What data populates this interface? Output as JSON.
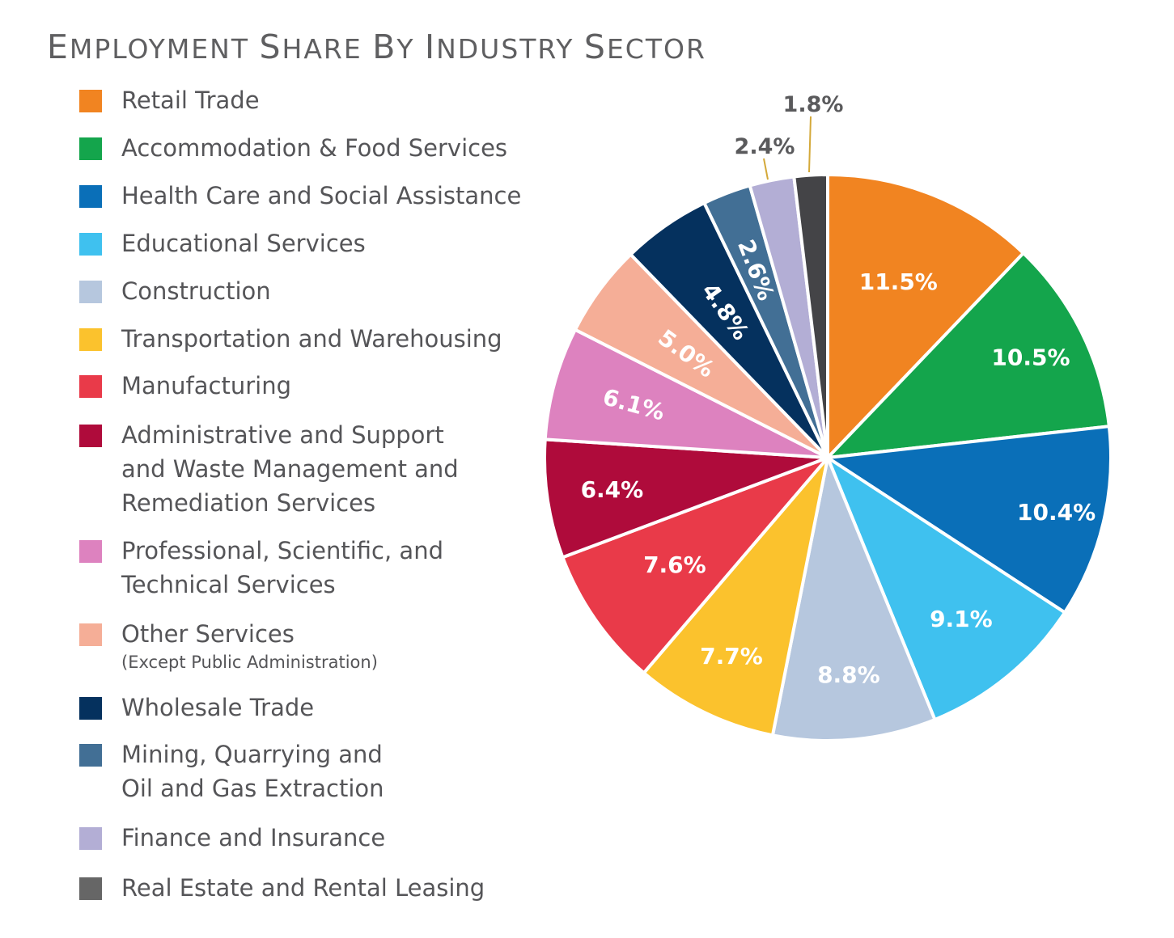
{
  "chart_data": {
    "type": "pie",
    "title": "Employment Share by Industry Sector",
    "title_display": "EMPLOYMENT SHARE BY INDUSTRY SECTOR",
    "slices": [
      {
        "label": "Retail Trade",
        "value": 11.5,
        "value_label": "11.5%",
        "color": "#f18421"
      },
      {
        "label": "Accommodation & Food Services",
        "value": 10.5,
        "value_label": "10.5%",
        "color": "#14a54c"
      },
      {
        "label": "Health Care and Social Assistance",
        "value": 10.4,
        "value_label": "10.4%",
        "color": "#0a6fb8"
      },
      {
        "label": "Educational Services",
        "value": 9.1,
        "value_label": "9.1%",
        "color": "#3fc1ef"
      },
      {
        "label": "Construction",
        "value": 8.8,
        "value_label": "8.8%",
        "color": "#b6c7de"
      },
      {
        "label": "Transportation and Warehousing",
        "value": 7.7,
        "value_label": "7.7%",
        "color": "#fbc22d"
      },
      {
        "label": "Manufacturing",
        "value": 7.6,
        "value_label": "7.6%",
        "color": "#e93a49"
      },
      {
        "label": "Administrative and Support and Waste Management and Remediation Services",
        "value": 6.4,
        "value_label": "6.4%",
        "color": "#af0b3b"
      },
      {
        "label": "Professional, Scientific, and Technical Services",
        "value": 6.1,
        "value_label": "6.1%",
        "color": "#dd82bf"
      },
      {
        "label": "Other Services (Except Public Administration)",
        "value": 5.0,
        "value_label": "5.0%",
        "color": "#f5ae97"
      },
      {
        "label": "Wholesale Trade",
        "value": 4.8,
        "value_label": "4.8%",
        "color": "#05315e"
      },
      {
        "label": "Mining, Quarrying and Oil and Gas Extraction",
        "value": 2.6,
        "value_label": "2.6%",
        "color": "#426f95"
      },
      {
        "label": "Finance and Insurance",
        "value": 2.4,
        "value_label": "2.4%",
        "color": "#b3aed5"
      },
      {
        "label": "Real Estate and Rental Leasing",
        "value": 1.8,
        "value_label": "1.8%",
        "color": "#444447"
      }
    ],
    "legend_placement": "left",
    "legend": [
      {
        "lines": [
          "Retail Trade"
        ],
        "sub": "",
        "color": "#f18421"
      },
      {
        "lines": [
          "Accommodation & Food Services"
        ],
        "sub": "",
        "color": "#14a54c"
      },
      {
        "lines": [
          "Health Care and Social Assistance"
        ],
        "sub": "",
        "color": "#0a6fb8"
      },
      {
        "lines": [
          "Educational Services"
        ],
        "sub": "",
        "color": "#3fc1ef"
      },
      {
        "lines": [
          "Construction"
        ],
        "sub": "",
        "color": "#b6c7de"
      },
      {
        "lines": [
          "Transportation and Warehousing"
        ],
        "sub": "",
        "color": "#fbc22d"
      },
      {
        "lines": [
          "Manufacturing"
        ],
        "sub": "",
        "color": "#e93a49"
      },
      {
        "lines": [
          "Administrative and Support",
          "and Waste Management and",
          "Remediation Services"
        ],
        "sub": "",
        "color": "#af0b3b"
      },
      {
        "lines": [
          "Professional, Scientific, and",
          "Technical Services"
        ],
        "sub": "",
        "color": "#dd82bf"
      },
      {
        "lines": [
          "Other Services"
        ],
        "sub": "(Except Public Administration)",
        "color": "#f5ae97"
      },
      {
        "lines": [
          "Wholesale Trade"
        ],
        "sub": "",
        "color": "#05315e"
      },
      {
        "lines": [
          "Mining, Quarrying and",
          "Oil and Gas Extraction"
        ],
        "sub": "",
        "color": "#426f95"
      },
      {
        "lines": [
          "Finance and Insurance"
        ],
        "sub": "",
        "color": "#b3aed5"
      },
      {
        "lines": [
          "Real Estate and Rental Leasing"
        ],
        "sub": "",
        "color": "#666666"
      }
    ],
    "leader_line_color": "#d4a93a"
  }
}
